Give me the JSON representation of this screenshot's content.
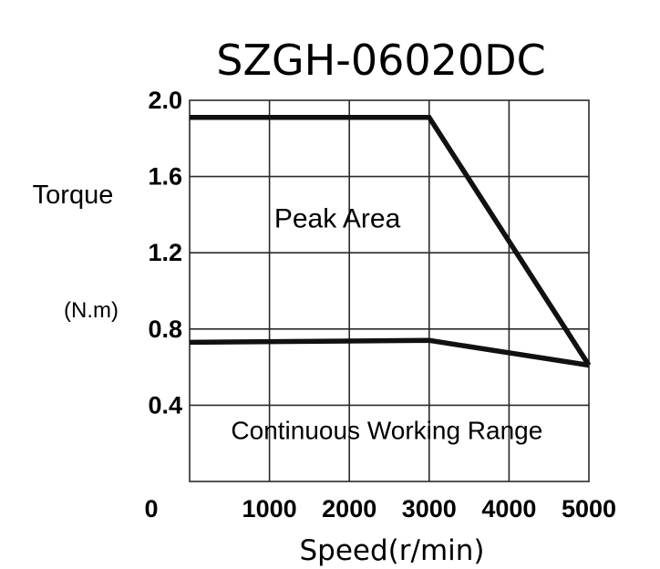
{
  "chart_data": {
    "type": "line",
    "title": "SZGH-06020DC",
    "ylabel": "Torque",
    "yunit": "(N.m)",
    "xlabel": "Speed(r/min)",
    "xlim": [
      0,
      5000
    ],
    "ylim": [
      0.0,
      2.0
    ],
    "xticks": [
      1000,
      2000,
      3000,
      4000,
      5000
    ],
    "xtick_labels": [
      "1000",
      "2000",
      "3000",
      "4000",
      "5000"
    ],
    "origin_label": "0",
    "yticks": [
      0.4,
      0.8,
      1.2,
      1.6,
      2.0
    ],
    "ytick_labels": [
      "0.4",
      "0.8",
      "1.2",
      "1.6",
      "2.0"
    ],
    "grid": true,
    "series": [
      {
        "values": [
          [
            0,
            1.91
          ],
          [
            3000,
            1.91
          ],
          [
            5000,
            0.61
          ]
        ]
      },
      {
        "values": [
          [
            0,
            0.73
          ],
          [
            3000,
            0.74
          ],
          [
            5000,
            0.61
          ]
        ]
      }
    ],
    "annotations": [
      {
        "text": "Peak Area",
        "x": 1850,
        "y": 1.38
      },
      {
        "text": "Continuous Working Range",
        "x": 2470,
        "y": 0.27
      }
    ]
  }
}
